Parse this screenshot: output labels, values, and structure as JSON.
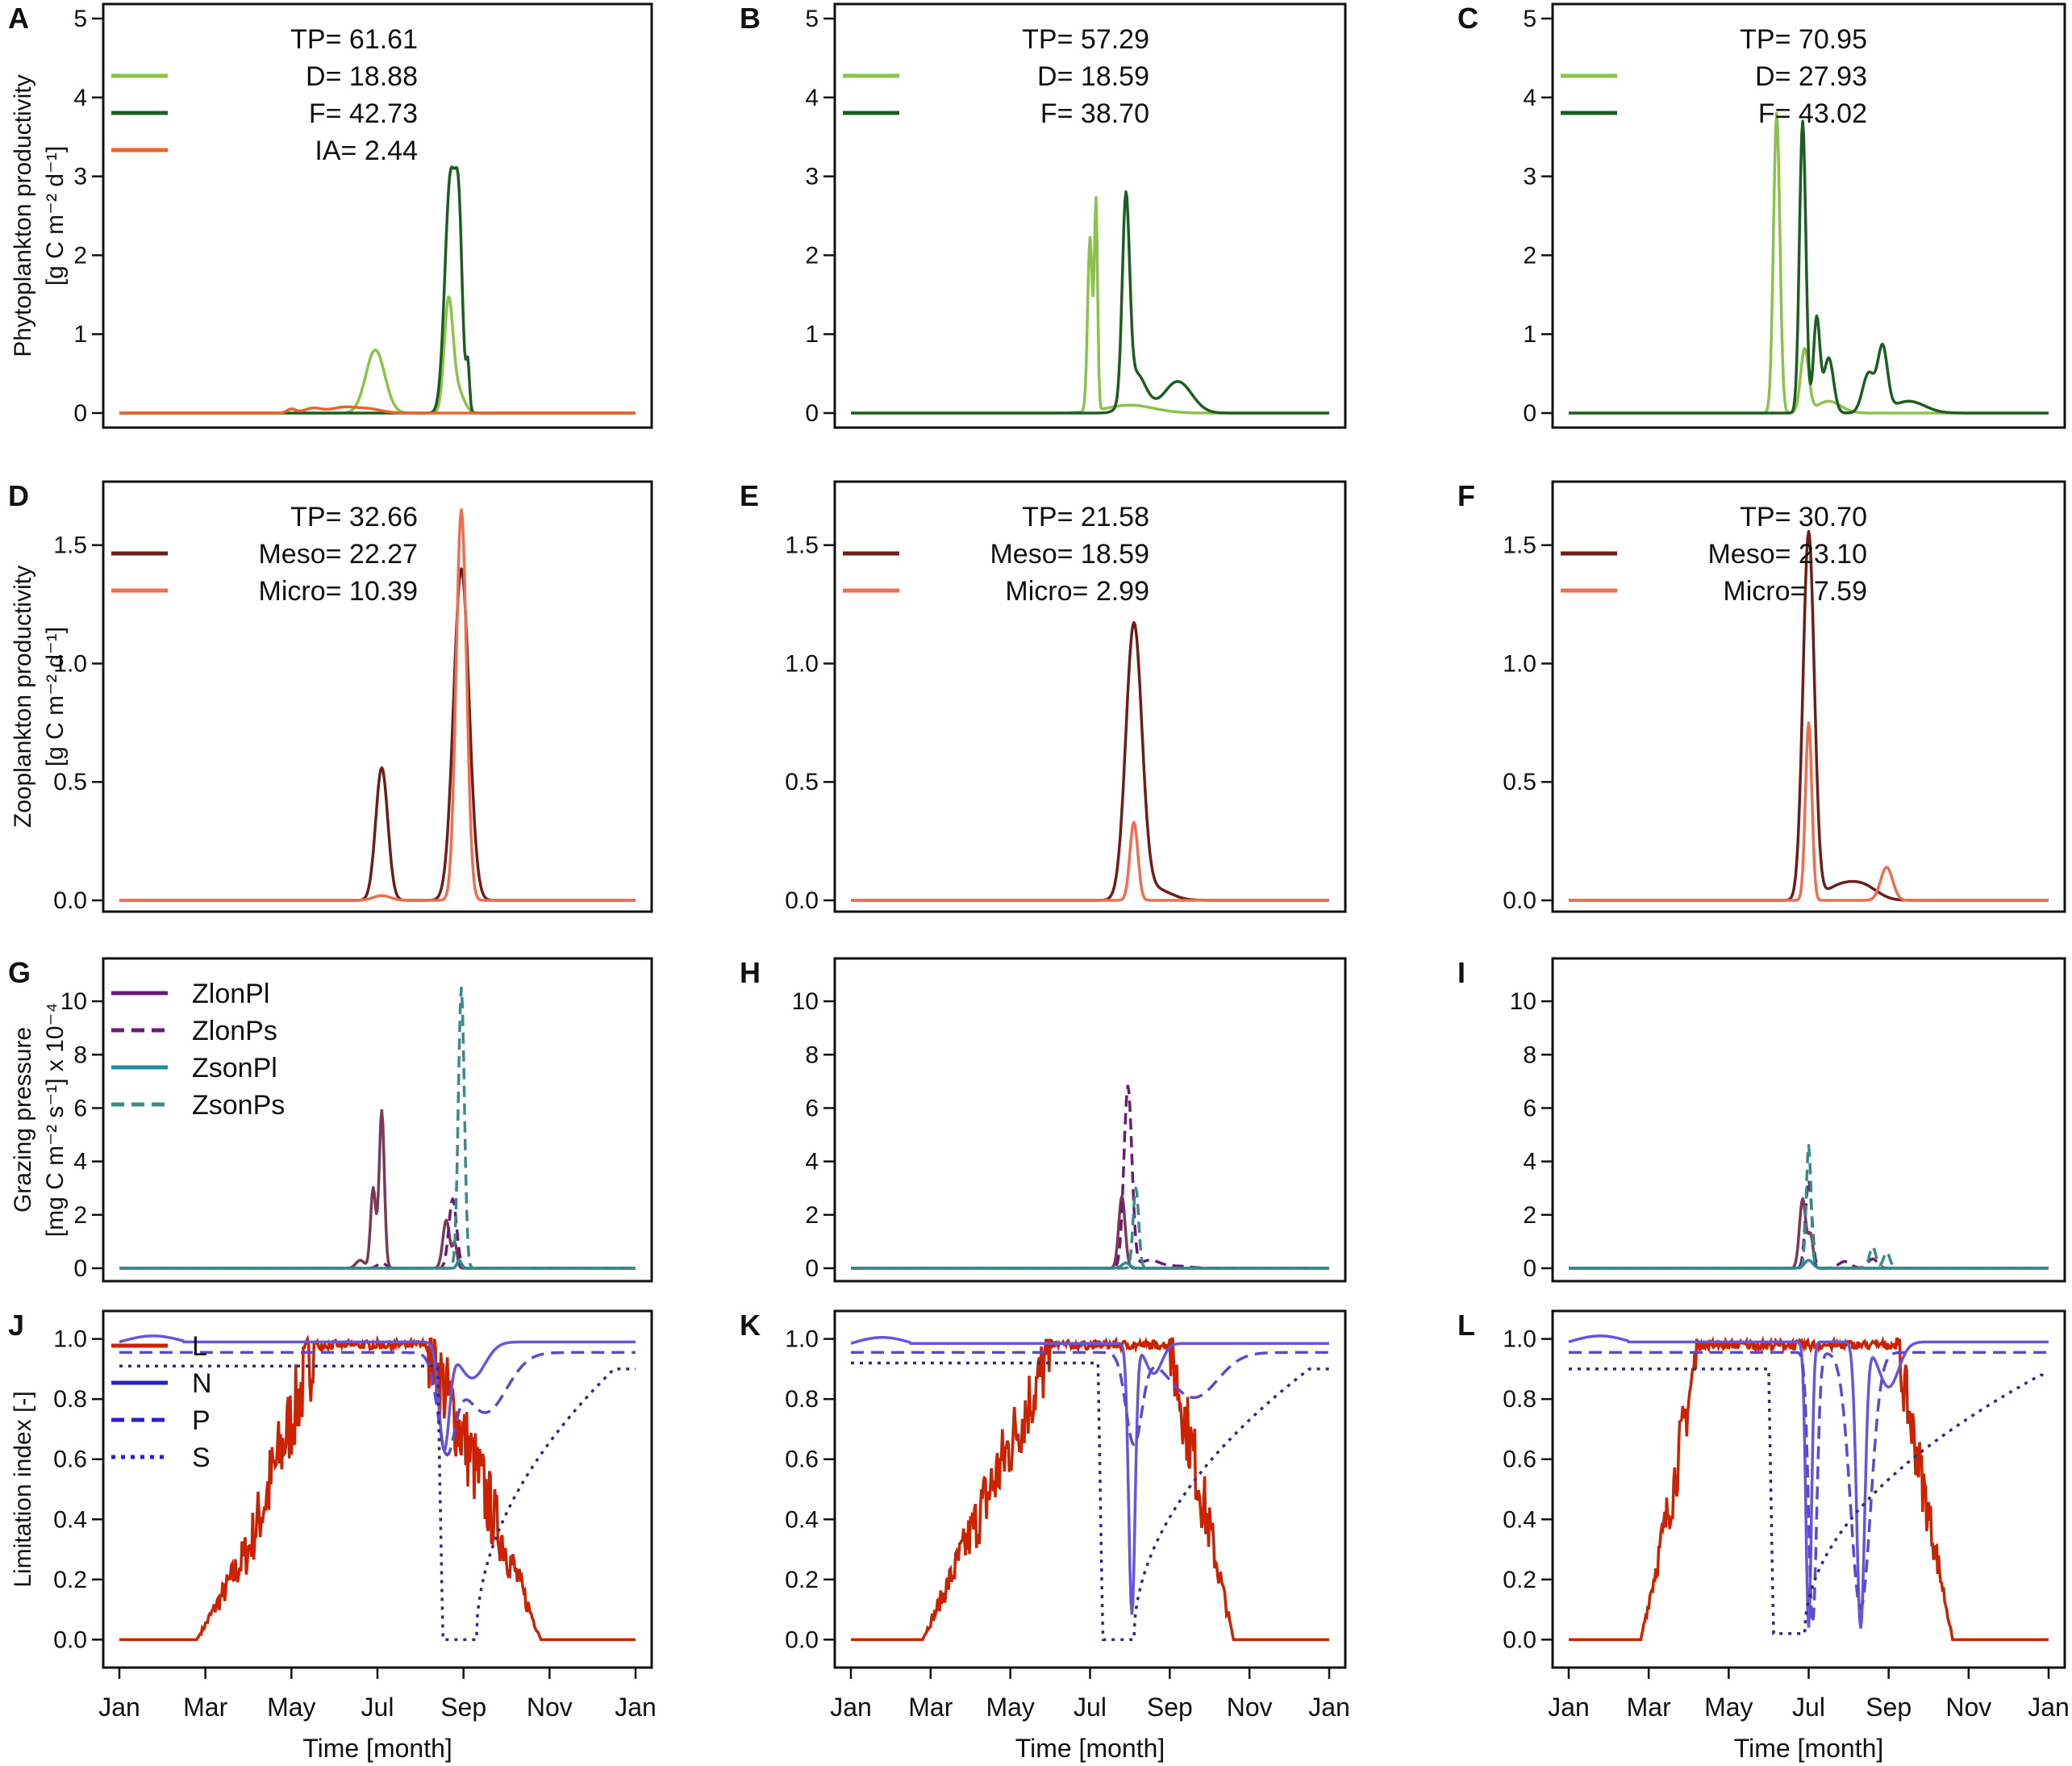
{
  "figure": {
    "months": [
      "Jan",
      "Mar",
      "May",
      "Jul",
      "Sep",
      "Nov",
      "Jan"
    ],
    "xlabel": "Time [month]"
  },
  "colors": {
    "diatom": "#8bc34a",
    "flag": "#1b5e20",
    "ia": "#e8652b",
    "meso": "#6b1e1a",
    "micro": "#ef6e4f",
    "zlonpl": "#6a1b7a",
    "zlonps": "#6a1b7a",
    "zsonpl": "#2a8a99",
    "zsonps": "#3a8a86",
    "graze_main": "#7a3a55",
    "light": "#cc2200",
    "nitrogen": "#6655dd",
    "phosphorus": "#5a4ad0",
    "silicate": "#332a80"
  },
  "chart_data": [
    {
      "row": "phyto",
      "type": "line",
      "ylabel_line1": "Phytoplankton productivity",
      "ylabel_line2": "[g C  m⁻²  d⁻¹]",
      "ylim": [
        0,
        5
      ],
      "yticks": [
        "0",
        "1",
        "2",
        "3",
        "4",
        "5"
      ],
      "panels": [
        {
          "letter": "A",
          "legend": {
            "title": "TP= 61.61",
            "entries": [
              {
                "key": "diatom",
                "label": "D= 18.88",
                "dash": "solid"
              },
              {
                "key": "flag",
                "label": "F= 42.73",
                "dash": "solid"
              },
              {
                "key": "ia",
                "label": "IA=   2.44",
                "dash": "solid"
              }
            ]
          },
          "series": [
            {
              "name": "D",
              "key": "diatom",
              "peaks": [
                [
                  5.95,
                  0.8,
                  0.22
                ],
                [
                  7.65,
                  1.35,
                  0.1
                ],
                [
                  7.85,
                  0.3,
                  0.15
                ]
              ]
            },
            {
              "name": "F",
              "key": "flag",
              "peaks": [
                [
                  7.7,
                  3.0,
                  0.13
                ],
                [
                  7.9,
                  1.9,
                  0.08
                ],
                [
                  8.1,
                  0.6,
                  0.04
                ]
              ]
            },
            {
              "name": "IA",
              "key": "ia",
              "peaks": [
                [
                  4.0,
                  0.05,
                  0.1
                ],
                [
                  4.5,
                  0.06,
                  0.2
                ],
                [
                  5.2,
                  0.07,
                  0.3
                ],
                [
                  5.8,
                  0.05,
                  0.3
                ]
              ]
            }
          ]
        },
        {
          "letter": "B",
          "legend": {
            "title": "TP= 57.29",
            "entries": [
              {
                "key": "diatom",
                "label": "D= 18.59",
                "dash": "solid"
              },
              {
                "key": "flag",
                "label": "F= 38.70",
                "dash": "solid"
              }
            ]
          },
          "series": [
            {
              "name": "D",
              "key": "diatom",
              "peaks": [
                [
                  6.0,
                  2.2,
                  0.06
                ],
                [
                  6.15,
                  2.6,
                  0.04
                ],
                [
                  7.0,
                  0.1,
                  0.6
                ]
              ]
            },
            {
              "name": "F",
              "key": "flag",
              "peaks": [
                [
                  6.9,
                  2.5,
                  0.09
                ],
                [
                  7.15,
                  0.5,
                  0.25
                ],
                [
                  8.2,
                  0.4,
                  0.35
                ]
              ]
            }
          ]
        },
        {
          "letter": "C",
          "legend": {
            "title": "TP= 70.95",
            "entries": [
              {
                "key": "diatom",
                "label": "D= 27.93",
                "dash": "solid"
              },
              {
                "key": "flag",
                "label": "F= 43.02",
                "dash": "solid"
              }
            ]
          },
          "series": [
            {
              "name": "D",
              "key": "diatom",
              "peaks": [
                [
                  5.2,
                  3.8,
                  0.08
                ],
                [
                  5.9,
                  0.8,
                  0.1
                ],
                [
                  6.5,
                  0.15,
                  0.3
                ]
              ]
            },
            {
              "name": "F",
              "key": "flag",
              "peaks": [
                [
                  5.85,
                  3.7,
                  0.08
                ],
                [
                  6.2,
                  1.2,
                  0.08
                ],
                [
                  6.5,
                  0.7,
                  0.12
                ],
                [
                  7.5,
                  0.5,
                  0.15
                ],
                [
                  7.85,
                  0.8,
                  0.12
                ],
                [
                  8.5,
                  0.15,
                  0.4
                ]
              ]
            }
          ]
        }
      ]
    },
    {
      "row": "zoo",
      "type": "line",
      "ylabel_line1": "Zooplankton productivity",
      "ylabel_line2": "[g C  m⁻²  d⁻¹]",
      "ylim": [
        0,
        1.7
      ],
      "yticks": [
        "0.0",
        "0.5",
        "1.0",
        "1.5"
      ],
      "panels": [
        {
          "letter": "D",
          "legend": {
            "title": "TP= 32.66",
            "entries": [
              {
                "key": "meso",
                "label": "Meso= 22.27",
                "dash": "solid"
              },
              {
                "key": "micro",
                "label": "Micro= 10.39",
                "dash": "solid"
              }
            ]
          },
          "series": [
            {
              "name": "Meso",
              "key": "meso",
              "peaks": [
                [
                  6.1,
                  0.56,
                  0.14
                ],
                [
                  7.95,
                  1.4,
                  0.18
                ]
              ]
            },
            {
              "name": "Micro",
              "key": "micro",
              "peaks": [
                [
                  6.1,
                  0.02,
                  0.2
                ],
                [
                  7.95,
                  1.65,
                  0.12
                ]
              ]
            }
          ]
        },
        {
          "letter": "E",
          "legend": {
            "title": "TP= 21.58",
            "entries": [
              {
                "key": "meso",
                "label": "Meso= 18.59",
                "dash": "solid"
              },
              {
                "key": "micro",
                "label": "Micro=   2.99",
                "dash": "solid"
              }
            ]
          },
          "series": [
            {
              "name": "Meso",
              "key": "meso",
              "peaks": [
                [
                  7.1,
                  1.15,
                  0.2
                ],
                [
                  7.6,
                  0.05,
                  0.4
                ]
              ]
            },
            {
              "name": "Micro",
              "key": "micro",
              "peaks": [
                [
                  7.1,
                  0.33,
                  0.1
                ]
              ]
            }
          ]
        },
        {
          "letter": "F",
          "legend": {
            "title": "TP= 30.70",
            "entries": [
              {
                "key": "meso",
                "label": "Meso= 23.10",
                "dash": "solid"
              },
              {
                "key": "micro",
                "label": "Micro=   7.59",
                "dash": "solid"
              }
            ]
          },
          "series": [
            {
              "name": "Meso",
              "key": "meso",
              "peaks": [
                [
                  6.0,
                  1.55,
                  0.14
                ],
                [
                  6.8,
                  0.06,
                  0.4
                ],
                [
                  7.4,
                  0.05,
                  0.35
                ]
              ]
            },
            {
              "name": "Micro",
              "key": "micro",
              "peaks": [
                [
                  6.0,
                  0.75,
                  0.08
                ],
                [
                  7.95,
                  0.14,
                  0.15
                ]
              ]
            }
          ]
        }
      ]
    },
    {
      "row": "graze",
      "type": "line",
      "ylabel_line1": "Grazing pressure",
      "ylabel_line2": "[mg C  m⁻²  s⁻¹] x 10⁻⁴",
      "ylim": [
        0,
        11
      ],
      "yticks": [
        "0",
        "2",
        "4",
        "6",
        "8",
        "10"
      ],
      "panels": [
        {
          "letter": "G",
          "legend": {
            "title": "",
            "entries": [
              {
                "key": "zlonpl",
                "label": "ZlonPl",
                "dash": "solid"
              },
              {
                "key": "zlonps",
                "label": "ZlonPs",
                "dash": "dashed"
              },
              {
                "key": "zsonpl",
                "label": "ZsonPl",
                "dash": "solid"
              },
              {
                "key": "zsonps",
                "label": "ZsonPs",
                "dash": "dashed"
              }
            ]
          },
          "series": [
            {
              "name": "ZlonPl",
              "key": "graze_main",
              "dash": "solid",
              "peaks": [
                [
                  5.9,
                  3.0,
                  0.06
                ],
                [
                  6.1,
                  5.9,
                  0.06
                ],
                [
                  5.6,
                  0.3,
                  0.1
                ],
                [
                  7.6,
                  1.8,
                  0.08
                ],
                [
                  7.8,
                  0.9,
                  0.05
                ]
              ]
            },
            {
              "name": "ZlonPs",
              "key": "zlonps",
              "dash": "dashed",
              "peaks": [
                [
                  6.1,
                  0.2,
                  0.1
                ],
                [
                  7.75,
                  2.6,
                  0.09
                ]
              ]
            },
            {
              "name": "ZsonPl",
              "key": "zsonpl",
              "dash": "solid",
              "peaks": [
                [
                  7.9,
                  0.3,
                  0.05
                ]
              ]
            },
            {
              "name": "ZsonPs",
              "key": "zsonps",
              "dash": "dashed",
              "peaks": [
                [
                  7.95,
                  10.5,
                  0.07
                ]
              ]
            }
          ]
        },
        {
          "letter": "H",
          "legend": {
            "title": "",
            "entries": []
          },
          "series": [
            {
              "name": "ZlonPl",
              "key": "graze_main",
              "dash": "solid",
              "peaks": [
                [
                  6.8,
                  2.7,
                  0.08
                ]
              ]
            },
            {
              "name": "ZlonPs",
              "key": "zlonps",
              "dash": "dashed",
              "peaks": [
                [
                  6.95,
                  6.8,
                  0.1
                ],
                [
                  7.5,
                  0.3,
                  0.25
                ],
                [
                  8.2,
                  0.08,
                  0.3
                ]
              ]
            },
            {
              "name": "ZsonPl",
              "key": "zsonpl",
              "dash": "solid",
              "peaks": [
                [
                  6.9,
                  0.2,
                  0.1
                ]
              ]
            },
            {
              "name": "ZsonPs",
              "key": "zsonps",
              "dash": "dashed",
              "peaks": [
                [
                  7.15,
                  3.0,
                  0.07
                ]
              ]
            }
          ]
        },
        {
          "letter": "I",
          "legend": {
            "title": "",
            "entries": []
          },
          "series": [
            {
              "name": "ZlonPl",
              "key": "graze_main",
              "dash": "solid",
              "peaks": [
                [
                  5.85,
                  2.6,
                  0.08
                ],
                [
                  6.05,
                  1.2,
                  0.06
                ]
              ]
            },
            {
              "name": "ZlonPs",
              "key": "zlonps",
              "dash": "dashed",
              "peaks": [
                [
                  6.0,
                  3.3,
                  0.08
                ],
                [
                  6.9,
                  0.25,
                  0.15
                ],
                [
                  7.6,
                  0.35,
                  0.12
                ]
              ]
            },
            {
              "name": "ZsonPl",
              "key": "zsonpl",
              "dash": "solid",
              "peaks": [
                [
                  6.0,
                  0.3,
                  0.1
                ]
              ]
            },
            {
              "name": "ZsonPs",
              "key": "zsonps",
              "dash": "dashed",
              "peaks": [
                [
                  6.0,
                  4.6,
                  0.06
                ],
                [
                  7.6,
                  0.8,
                  0.08
                ],
                [
                  7.95,
                  0.6,
                  0.08
                ]
              ]
            }
          ]
        }
      ]
    },
    {
      "row": "limit",
      "type": "line",
      "ylabel_line1": "Limitation index [-]",
      "ylabel_line2": "",
      "ylim": [
        -0.05,
        1.05
      ],
      "yticks": [
        "0.0",
        "0.2",
        "0.4",
        "0.6",
        "0.8",
        "1.0"
      ],
      "panels": [
        {
          "letter": "J",
          "legend": {
            "title": "",
            "entries": [
              {
                "key": "light",
                "label": "L",
                "dash": "solid"
              },
              {
                "key": "legend_blue",
                "label": "N",
                "dash": "solid"
              },
              {
                "key": "legend_blue",
                "label": "P",
                "dash": "dashed"
              },
              {
                "key": "legend_blue",
                "label": "S",
                "dotted": true,
                "dash": "dotted"
              }
            ]
          },
          "light": {
            "rise": [
              1.8,
              3.0
            ],
            "mid": 0.3,
            "high_start": 4.5,
            "high_end": 7.2,
            "fall_end": 9.8,
            "jitter": 0.28
          },
          "nitrogen": {
            "base": 0.99,
            "dips": [
              [
                7.55,
                0.35,
                0.12
              ],
              [
                8.2,
                0.12,
                0.3
              ]
            ]
          },
          "phosphorus": {
            "base": 0.955,
            "dips": [
              [
                7.6,
                0.3,
                0.2
              ],
              [
                8.5,
                0.2,
                0.5
              ]
            ]
          },
          "silicate": {
            "base": 0.91,
            "drop_at": 7.4,
            "drop_to": 0.0,
            "recover_end": 11.5,
            "recover_to": 0.9
          }
        },
        {
          "letter": "K",
          "legend": {
            "title": "",
            "entries": []
          },
          "light": {
            "rise": [
              1.8,
              3.0
            ],
            "mid": 0.35,
            "high_start": 5.0,
            "high_end": 8.0,
            "fall_end": 9.6,
            "jitter": 0.25
          },
          "nitrogen": {
            "base": 0.985,
            "dips": [
              [
                7.05,
                0.9,
                0.08
              ],
              [
                7.6,
                0.1,
                0.2
              ]
            ]
          },
          "phosphorus": {
            "base": 0.955,
            "dips": [
              [
                7.1,
                0.3,
                0.2
              ],
              [
                8.6,
                0.15,
                0.6
              ]
            ]
          },
          "silicate": {
            "base": 0.92,
            "drop_at": 6.2,
            "drop_to": 0.0,
            "recover_end": 11.5,
            "recover_to": 0.9
          }
        },
        {
          "letter": "L",
          "legend": {
            "title": "",
            "entries": []
          },
          "light": {
            "rise": [
              1.8,
              2.6
            ],
            "mid": 0.5,
            "high_start": 3.2,
            "high_end": 8.2,
            "fall_end": 9.6,
            "jitter": 0.2
          },
          "nitrogen": {
            "base": 0.99,
            "dips": [
              [
                6.0,
                0.95,
                0.07
              ],
              [
                7.3,
                0.95,
                0.1
              ],
              [
                8.0,
                0.15,
                0.25
              ]
            ]
          },
          "phosphorus": {
            "base": 0.955,
            "dips": [
              [
                6.1,
                0.9,
                0.1
              ],
              [
                7.3,
                0.85,
                0.25
              ]
            ]
          },
          "silicate": {
            "base": 0.9,
            "drop_at": 5.0,
            "drop_to": 0.02,
            "recover_end": 11.8,
            "recover_to": 0.88
          }
        }
      ]
    }
  ]
}
